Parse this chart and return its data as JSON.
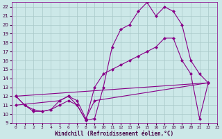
{
  "background_color": "#cce8e8",
  "grid_color": "#a8c8c8",
  "line_color": "#880088",
  "marker": "D",
  "markersize": 2.0,
  "linewidth": 0.8,
  "xlim": [
    -0.5,
    23
  ],
  "ylim": [
    9,
    22.5
  ],
  "xticks": [
    0,
    1,
    2,
    3,
    4,
    5,
    6,
    7,
    8,
    9,
    10,
    11,
    12,
    13,
    14,
    15,
    16,
    17,
    18,
    19,
    20,
    21,
    22,
    23
  ],
  "yticks": [
    9,
    10,
    11,
    12,
    13,
    14,
    15,
    16,
    17,
    18,
    19,
    20,
    21,
    22
  ],
  "xlabel": "Windchill (Refroidissement éolien,°C)",
  "series": [
    {
      "x": [
        0,
        1,
        2,
        3,
        4,
        5,
        6,
        7,
        8,
        9,
        10,
        11,
        12,
        13,
        14,
        15,
        16,
        17,
        18,
        19,
        20,
        21,
        22
      ],
      "y": [
        12,
        11,
        10.5,
        10.3,
        10.5,
        11.5,
        12,
        11,
        9.3,
        9.5,
        13,
        17.5,
        19.5,
        20,
        21.5,
        22.5,
        21,
        22,
        21.5,
        20,
        16,
        14.5,
        13.5
      ]
    },
    {
      "x": [
        0,
        1,
        2,
        3,
        4,
        5,
        6,
        7,
        8,
        9,
        10,
        11,
        12,
        13,
        14,
        15,
        16,
        17,
        18,
        19,
        20,
        21,
        22
      ],
      "y": [
        12,
        11,
        10.3,
        10.3,
        10.5,
        11.0,
        11.5,
        11,
        9.3,
        13,
        14.5,
        15.0,
        15.5,
        16.0,
        16.5,
        17.0,
        17.5,
        18.5,
        18.5,
        16,
        14.5,
        9.5,
        13.5
      ]
    },
    {
      "x": [
        0,
        22
      ],
      "y": [
        12,
        13.5
      ]
    },
    {
      "x": [
        0,
        5,
        6,
        7,
        8,
        9,
        22
      ],
      "y": [
        11,
        11.5,
        12,
        11.5,
        9.5,
        11.5,
        13.5
      ]
    }
  ]
}
